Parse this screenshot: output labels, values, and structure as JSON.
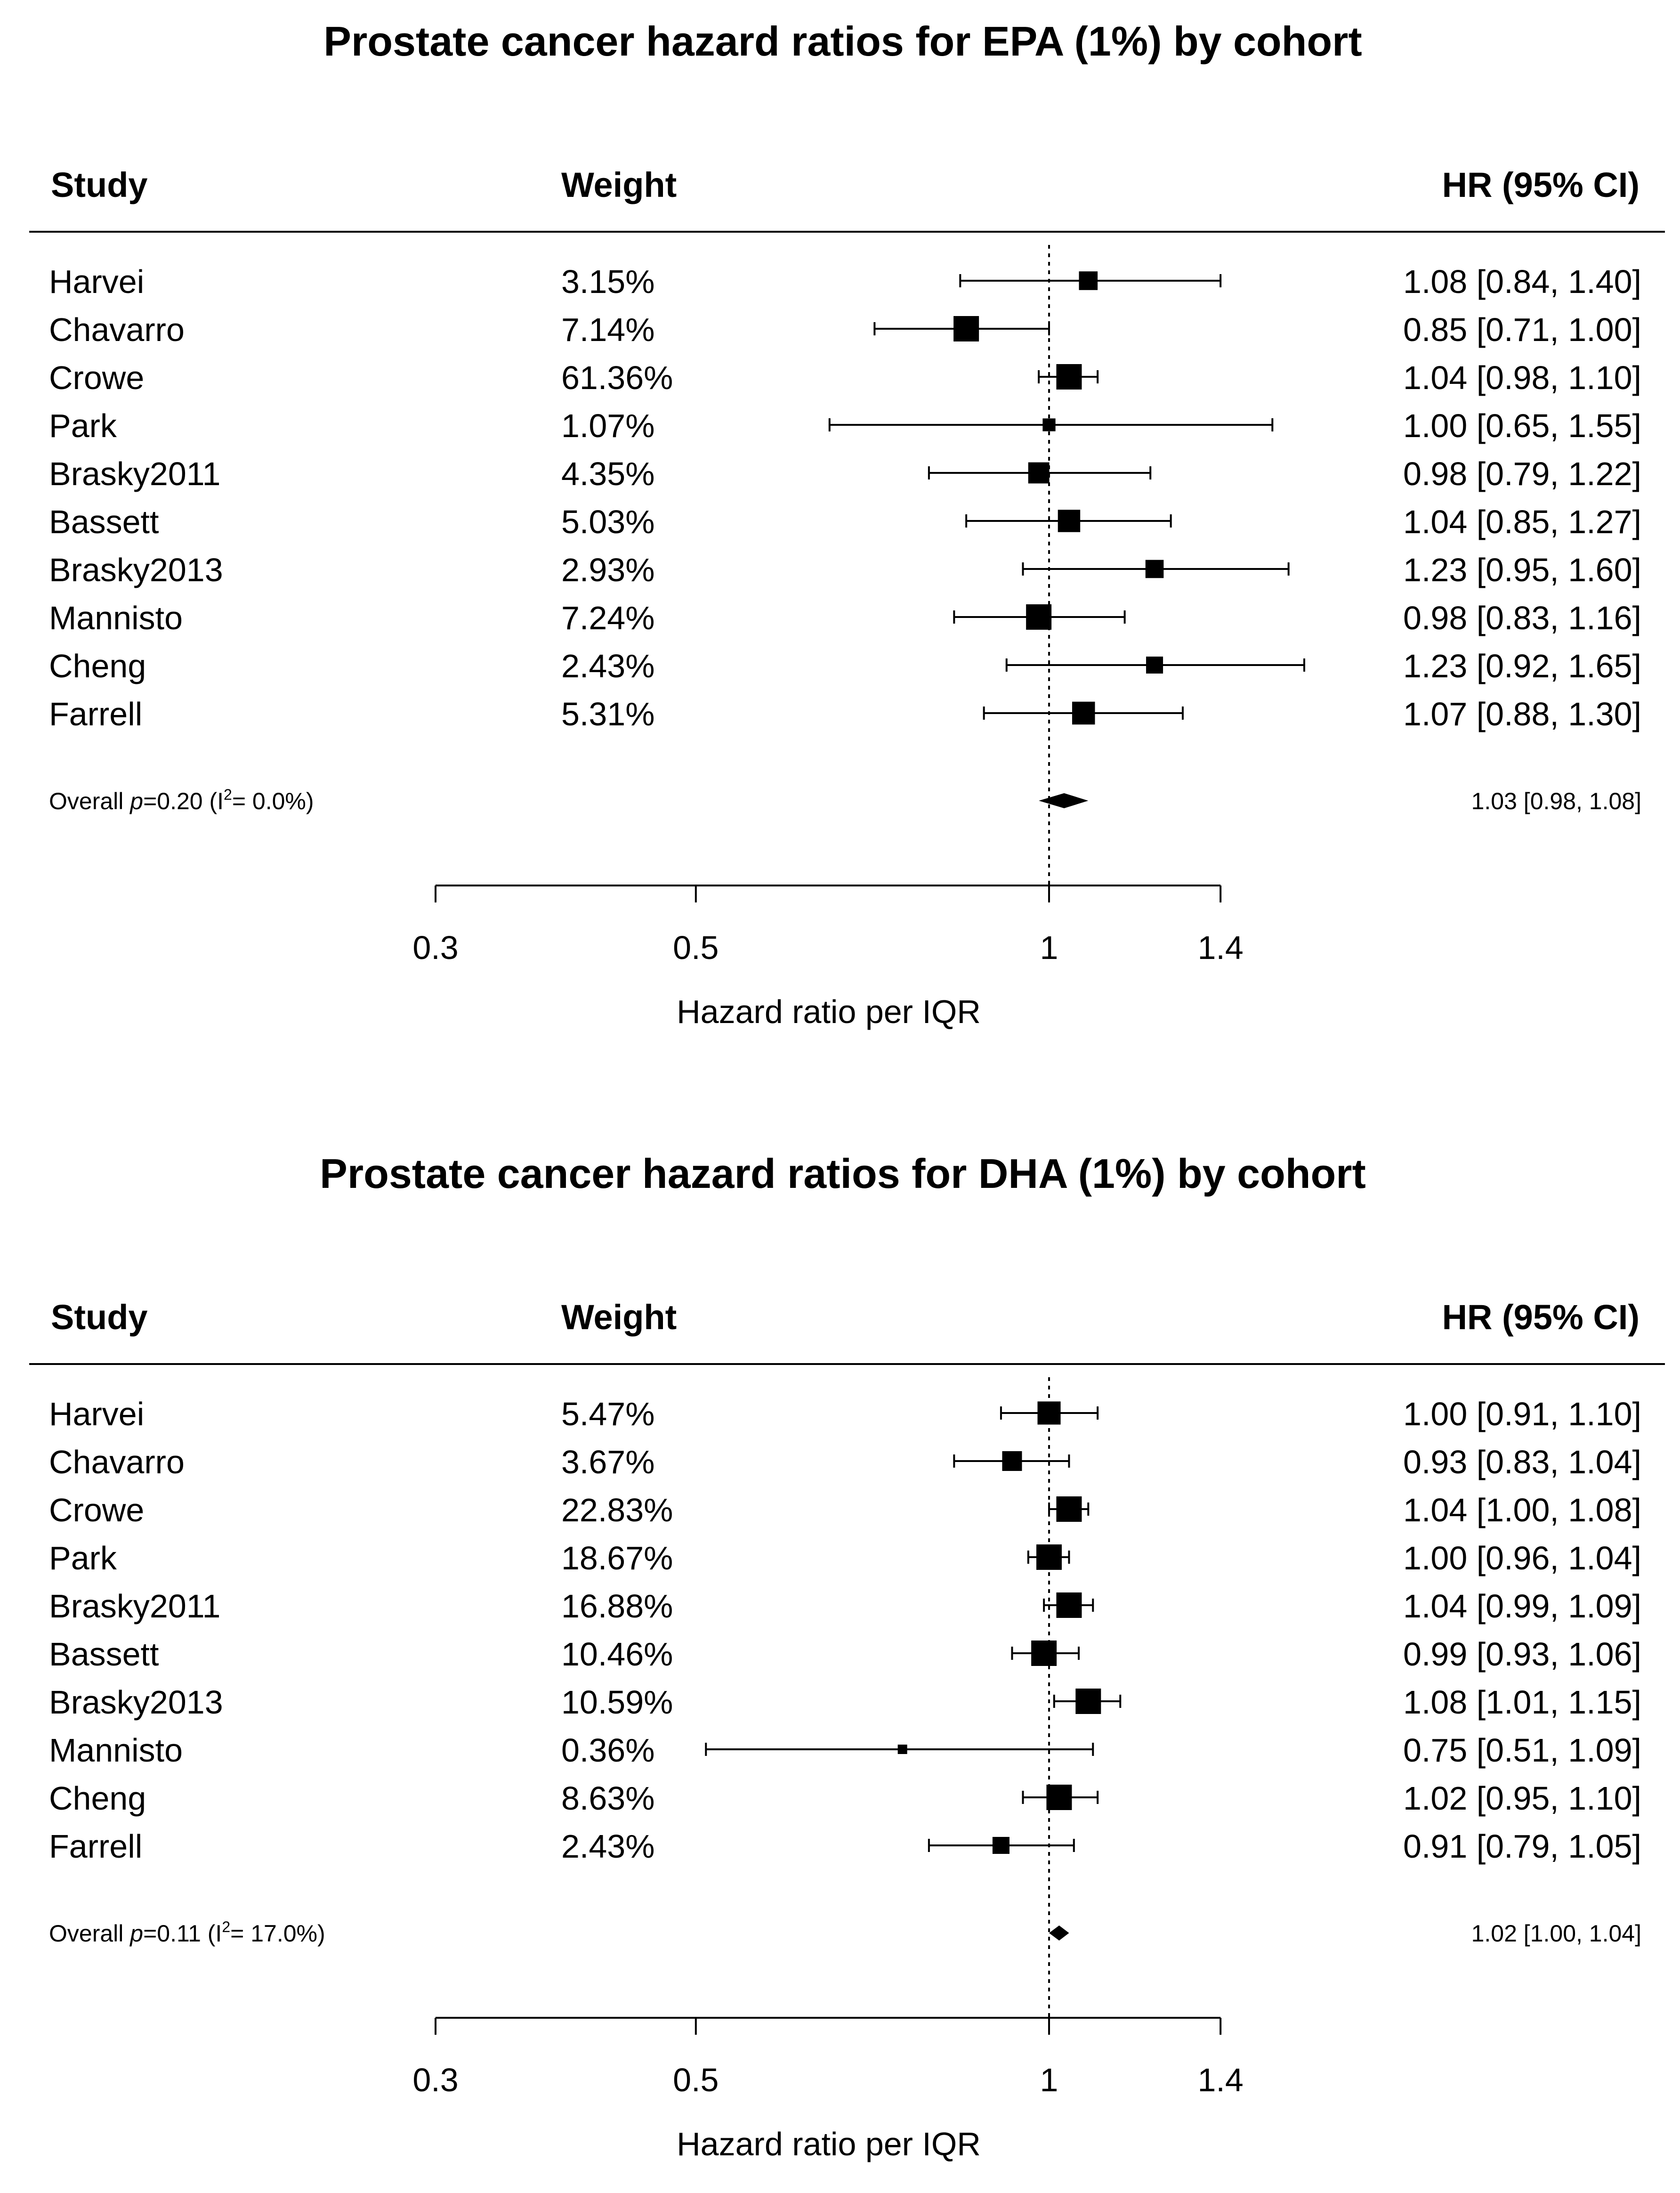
{
  "chart_data": [
    {
      "type": "forest",
      "title": "Prostate cancer hazard ratios for EPA (1%) by cohort",
      "columns": {
        "study": "Study",
        "weight": "Weight",
        "hr": "HR (95% CI)"
      },
      "rows": [
        {
          "study": "Harvei",
          "weight": "3.15%",
          "hr": 1.08,
          "lo": 0.84,
          "hi": 1.4,
          "label": "1.08 [0.84, 1.40]"
        },
        {
          "study": "Chavarro",
          "weight": "7.14%",
          "hr": 0.85,
          "lo": 0.71,
          "hi": 1.0,
          "label": "0.85 [0.71, 1.00]"
        },
        {
          "study": "Crowe",
          "weight": "61.36%",
          "hr": 1.04,
          "lo": 0.98,
          "hi": 1.1,
          "label": "1.04 [0.98, 1.10]"
        },
        {
          "study": "Park",
          "weight": "1.07%",
          "hr": 1.0,
          "lo": 0.65,
          "hi": 1.55,
          "label": "1.00 [0.65, 1.55]"
        },
        {
          "study": "Brasky2011",
          "weight": "4.35%",
          "hr": 0.98,
          "lo": 0.79,
          "hi": 1.22,
          "label": "0.98 [0.79, 1.22]"
        },
        {
          "study": "Bassett",
          "weight": "5.03%",
          "hr": 1.04,
          "lo": 0.85,
          "hi": 1.27,
          "label": "1.04 [0.85, 1.27]"
        },
        {
          "study": "Brasky2013",
          "weight": "2.93%",
          "hr": 1.23,
          "lo": 0.95,
          "hi": 1.6,
          "label": "1.23 [0.95, 1.60]"
        },
        {
          "study": "Mannisto",
          "weight": "7.24%",
          "hr": 0.98,
          "lo": 0.83,
          "hi": 1.16,
          "label": "0.98 [0.83, 1.16]"
        },
        {
          "study": "Cheng",
          "weight": "2.43%",
          "hr": 1.23,
          "lo": 0.92,
          "hi": 1.65,
          "label": "1.23 [0.92, 1.65]"
        },
        {
          "study": "Farrell",
          "weight": "5.31%",
          "hr": 1.07,
          "lo": 0.88,
          "hi": 1.3,
          "label": "1.07 [0.88, 1.30]"
        }
      ],
      "overall": {
        "p": "0.20",
        "i2": "0.0%",
        "hr": 1.03,
        "lo": 0.98,
        "hi": 1.08,
        "label": "1.03 [0.98, 1.08]"
      },
      "xaxis": {
        "label": "Hazard ratio per IQR",
        "scale": "log",
        "ticks": [
          0.3,
          0.5,
          1,
          1.4
        ],
        "tick_labels": [
          "0.3",
          "0.5",
          "1",
          "1.4"
        ],
        "reference": 1
      }
    },
    {
      "type": "forest",
      "title": "Prostate cancer hazard ratios for DHA (1%) by cohort",
      "columns": {
        "study": "Study",
        "weight": "Weight",
        "hr": "HR (95% CI)"
      },
      "rows": [
        {
          "study": "Harvei",
          "weight": "5.47%",
          "hr": 1.0,
          "lo": 0.91,
          "hi": 1.1,
          "label": "1.00 [0.91, 1.10]"
        },
        {
          "study": "Chavarro",
          "weight": "3.67%",
          "hr": 0.93,
          "lo": 0.83,
          "hi": 1.04,
          "label": "0.93 [0.83, 1.04]"
        },
        {
          "study": "Crowe",
          "weight": "22.83%",
          "hr": 1.04,
          "lo": 1.0,
          "hi": 1.08,
          "label": "1.04 [1.00, 1.08]"
        },
        {
          "study": "Park",
          "weight": "18.67%",
          "hr": 1.0,
          "lo": 0.96,
          "hi": 1.04,
          "label": "1.00 [0.96, 1.04]"
        },
        {
          "study": "Brasky2011",
          "weight": "16.88%",
          "hr": 1.04,
          "lo": 0.99,
          "hi": 1.09,
          "label": "1.04 [0.99, 1.09]"
        },
        {
          "study": "Bassett",
          "weight": "10.46%",
          "hr": 0.99,
          "lo": 0.93,
          "hi": 1.06,
          "label": "0.99 [0.93, 1.06]"
        },
        {
          "study": "Brasky2013",
          "weight": "10.59%",
          "hr": 1.08,
          "lo": 1.01,
          "hi": 1.15,
          "label": "1.08 [1.01, 1.15]"
        },
        {
          "study": "Mannisto",
          "weight": "0.36%",
          "hr": 0.75,
          "lo": 0.51,
          "hi": 1.09,
          "label": "0.75 [0.51, 1.09]"
        },
        {
          "study": "Cheng",
          "weight": "8.63%",
          "hr": 1.02,
          "lo": 0.95,
          "hi": 1.1,
          "label": "1.02 [0.95, 1.10]"
        },
        {
          "study": "Farrell",
          "weight": "2.43%",
          "hr": 0.91,
          "lo": 0.79,
          "hi": 1.05,
          "label": "0.91 [0.79, 1.05]"
        }
      ],
      "overall": {
        "p": "0.11",
        "i2": "17.0%",
        "hr": 1.02,
        "lo": 1.0,
        "hi": 1.04,
        "label": "1.02 [1.00, 1.04]"
      },
      "xaxis": {
        "label": "Hazard ratio per IQR",
        "scale": "log",
        "ticks": [
          0.3,
          0.5,
          1,
          1.4
        ],
        "tick_labels": [
          "0.3",
          "0.5",
          "1",
          "1.4"
        ],
        "reference": 1
      }
    }
  ]
}
